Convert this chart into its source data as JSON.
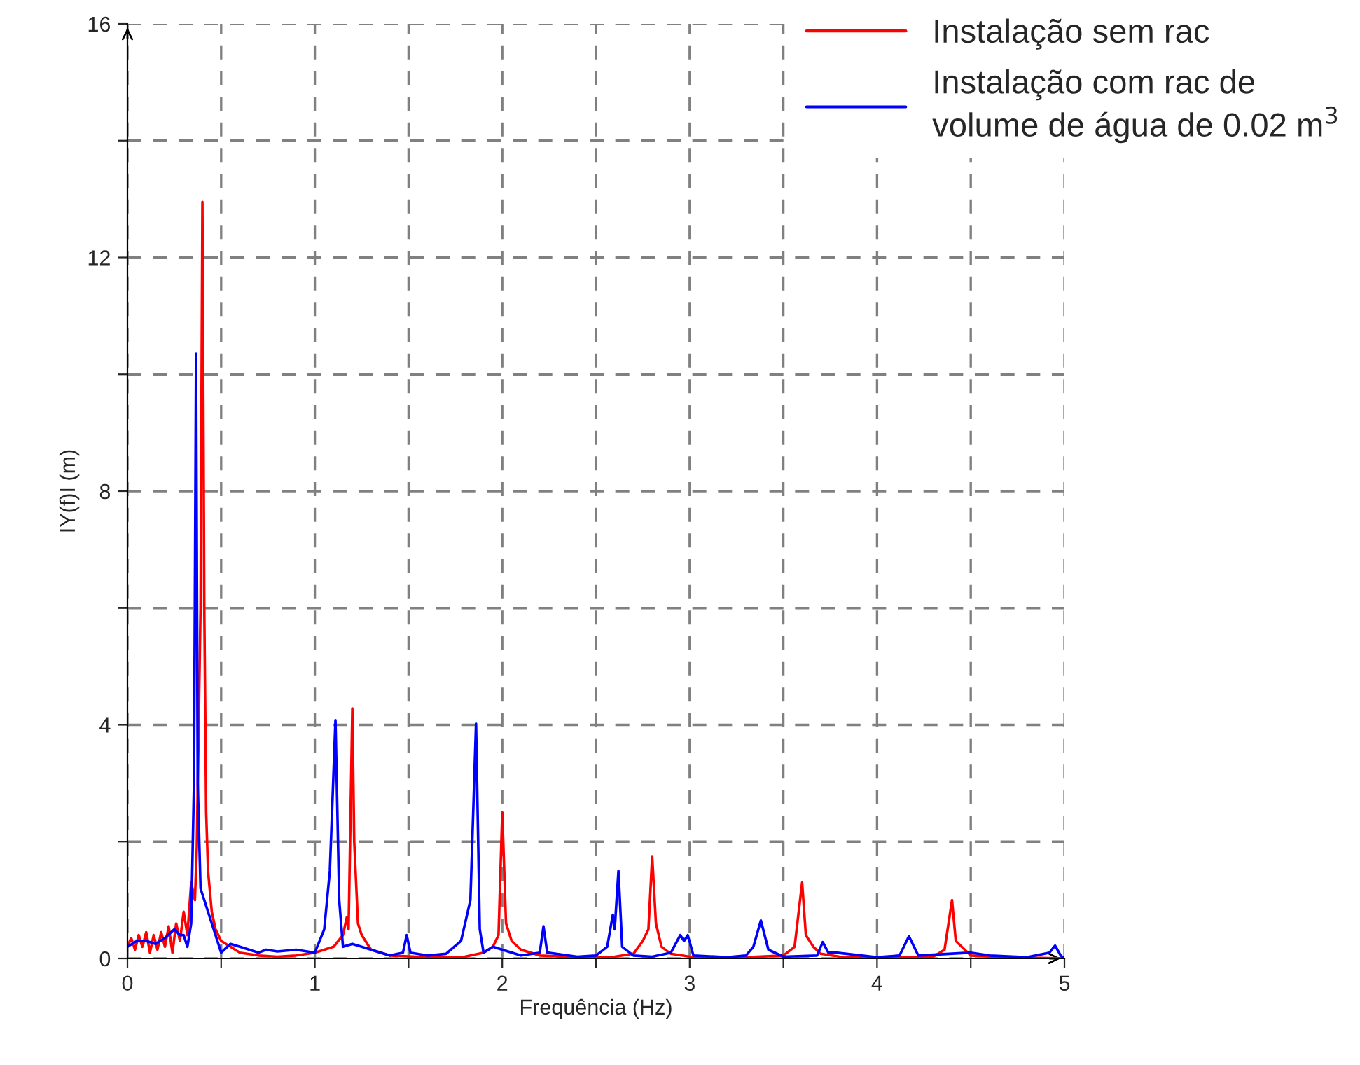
{
  "chart_data": {
    "type": "line",
    "xlabel": "Frequência (Hz)",
    "ylabel": "IY(f)I (m)",
    "xlim": [
      0,
      5
    ],
    "ylim": [
      0,
      16
    ],
    "xticks": [
      0,
      {
        "value": 0.5,
        "label": null
      },
      1,
      {
        "value": 1.5,
        "label": null
      },
      2,
      {
        "value": 2.5,
        "label": null
      },
      3,
      {
        "value": 3.5,
        "label": null
      },
      4,
      {
        "value": 4.5,
        "label": null
      },
      5
    ],
    "yticks": [
      0,
      {
        "value": 2,
        "label": null
      },
      4,
      {
        "value": 6,
        "label": null
      },
      8,
      {
        "value": 10,
        "label": null
      },
      12,
      {
        "value": 14,
        "label": null
      },
      16
    ],
    "grid": true,
    "legend": "top right",
    "marker": "none",
    "line_style": "solid",
    "series": [
      {
        "name": "Instalação sem rac",
        "color": "#ff0000",
        "x": [
          0,
          0.02,
          0.04,
          0.06,
          0.08,
          0.1,
          0.12,
          0.14,
          0.16,
          0.18,
          0.2,
          0.22,
          0.24,
          0.26,
          0.28,
          0.3,
          0.32,
          0.34,
          0.36,
          0.37,
          0.39,
          0.4,
          0.41,
          0.42,
          0.43,
          0.45,
          0.47,
          0.5,
          0.55,
          0.6,
          0.7,
          0.8,
          0.9,
          1.0,
          1.05,
          1.1,
          1.15,
          1.17,
          1.18,
          1.2,
          1.21,
          1.23,
          1.25,
          1.3,
          1.4,
          1.6,
          1.8,
          1.9,
          1.95,
          1.98,
          2.0,
          2.02,
          2.05,
          2.1,
          2.2,
          2.4,
          2.6,
          2.7,
          2.75,
          2.78,
          2.8,
          2.82,
          2.85,
          2.9,
          3.0,
          3.3,
          3.5,
          3.56,
          3.6,
          3.62,
          3.66,
          3.7,
          3.8,
          4.0,
          4.3,
          4.36,
          4.4,
          4.42,
          4.5,
          4.7,
          5.0
        ],
        "values": [
          0.2,
          0.35,
          0.15,
          0.4,
          0.2,
          0.45,
          0.1,
          0.4,
          0.15,
          0.45,
          0.2,
          0.55,
          0.1,
          0.6,
          0.3,
          0.8,
          0.4,
          1.3,
          1.0,
          1.9,
          6,
          12.95,
          6,
          2.5,
          1.5,
          0.8,
          0.5,
          0.3,
          0.2,
          0.1,
          0.05,
          0.03,
          0.05,
          0.1,
          0.15,
          0.2,
          0.4,
          0.7,
          0.5,
          4.28,
          2.0,
          0.6,
          0.4,
          0.15,
          0.05,
          0.02,
          0.03,
          0.1,
          0.2,
          0.4,
          2.5,
          0.6,
          0.3,
          0.15,
          0.05,
          0.02,
          0.03,
          0.08,
          0.3,
          0.5,
          1.75,
          0.6,
          0.2,
          0.08,
          0.03,
          0.02,
          0.05,
          0.2,
          1.3,
          0.4,
          0.2,
          0.08,
          0.03,
          0.02,
          0.03,
          0.15,
          1.0,
          0.3,
          0.05,
          0.02,
          0.0
        ]
      },
      {
        "name": "Instalação com rac de\nvolume de água de 0.02 m$^{3}$",
        "color": "#0000ff",
        "x": [
          0,
          0.05,
          0.1,
          0.15,
          0.2,
          0.25,
          0.28,
          0.3,
          0.32,
          0.34,
          0.355,
          0.366,
          0.375,
          0.39,
          0.42,
          0.45,
          0.5,
          0.55,
          0.6,
          0.7,
          0.74,
          0.8,
          0.9,
          1.0,
          1.05,
          1.08,
          1.11,
          1.13,
          1.15,
          1.2,
          1.3,
          1.4,
          1.47,
          1.49,
          1.51,
          1.6,
          1.7,
          1.78,
          1.83,
          1.86,
          1.88,
          1.9,
          1.95,
          2.0,
          2.1,
          2.2,
          2.22,
          2.24,
          2.4,
          2.5,
          2.56,
          2.59,
          2.6,
          2.62,
          2.64,
          2.7,
          2.8,
          2.9,
          2.95,
          2.97,
          2.99,
          3.02,
          3.2,
          3.3,
          3.34,
          3.38,
          3.42,
          3.5,
          3.68,
          3.71,
          3.74,
          3.78,
          4.0,
          4.12,
          4.17,
          4.22,
          4.5,
          4.6,
          4.8,
          4.92,
          4.95,
          4.98,
          5.0
        ],
        "values": [
          0.2,
          0.3,
          0.3,
          0.25,
          0.35,
          0.5,
          0.4,
          0.4,
          0.2,
          0.6,
          3,
          10.35,
          3,
          1.2,
          0.9,
          0.6,
          0.1,
          0.25,
          0.2,
          0.1,
          0.15,
          0.12,
          0.15,
          0.1,
          0.5,
          1.5,
          4.08,
          1.0,
          0.2,
          0.25,
          0.15,
          0.05,
          0.1,
          0.4,
          0.1,
          0.05,
          0.08,
          0.3,
          1.0,
          4.02,
          0.5,
          0.1,
          0.2,
          0.15,
          0.05,
          0.1,
          0.55,
          0.1,
          0.03,
          0.05,
          0.2,
          0.75,
          0.5,
          1.5,
          0.2,
          0.05,
          0.03,
          0.1,
          0.4,
          0.3,
          0.4,
          0.05,
          0.02,
          0.05,
          0.2,
          0.65,
          0.15,
          0.03,
          0.05,
          0.28,
          0.1,
          0.1,
          0.02,
          0.05,
          0.38,
          0.05,
          0.1,
          0.05,
          0.02,
          0.1,
          0.22,
          0.05,
          0.0
        ]
      }
    ]
  }
}
